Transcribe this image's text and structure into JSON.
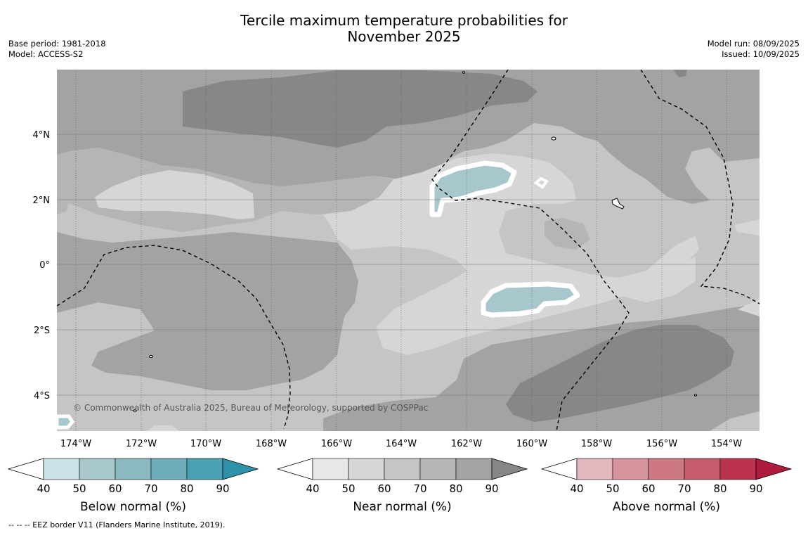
{
  "title_line1": "Tercile maximum temperature probabilities for",
  "title_line2": "November 2025",
  "base_period": "Base period: 1981-2018",
  "model": "Model: ACCESS-S2",
  "model_run": "Model run: 08/09/2025",
  "issued": "Issued: 10/09/2025",
  "copyright": "© Commonwealth of Australia 2025, Bureau of Meteorology, supported by COSPPac",
  "footer_note": "--  --  -- EEZ border V11 (Flanders Marine Institute, 2019).",
  "lon_labels": [
    "174°W",
    "172°W",
    "170°W",
    "168°W",
    "166°W",
    "164°W",
    "162°W",
    "160°W",
    "158°W",
    "156°W",
    "154°W"
  ],
  "lat_labels": [
    "4°N",
    "2°N",
    "0°",
    "2°S",
    "4°S"
  ],
  "legend_ticks": [
    "40",
    "50",
    "60",
    "70",
    "80",
    "90"
  ],
  "legends": [
    {
      "label": "Below normal (%)",
      "colors": [
        "#c9e3e9",
        "#a8c7cc",
        "#8bb9c1",
        "#6eaebb",
        "#4aa1b1",
        "#2e93a9"
      ]
    },
    {
      "label": "Near normal (%)",
      "colors": [
        "#e7e7e7",
        "#d6d6d6",
        "#c5c5c5",
        "#b5b5b5",
        "#a3a3a3",
        "#878787"
      ]
    },
    {
      "label": "Above normal (%)",
      "colors": [
        "#e3b7be",
        "#d8949e",
        "#cd7883",
        "#c55b6b",
        "#bc3350",
        "#ae1b3c"
      ]
    }
  ],
  "colors": {
    "near_50": "#d6d6d6",
    "near_60": "#c5c5c5",
    "near_70": "#b5b5b5",
    "near_80": "#a3a3a3",
    "near_90": "#878787",
    "below_50": "#a8c7cc"
  }
}
